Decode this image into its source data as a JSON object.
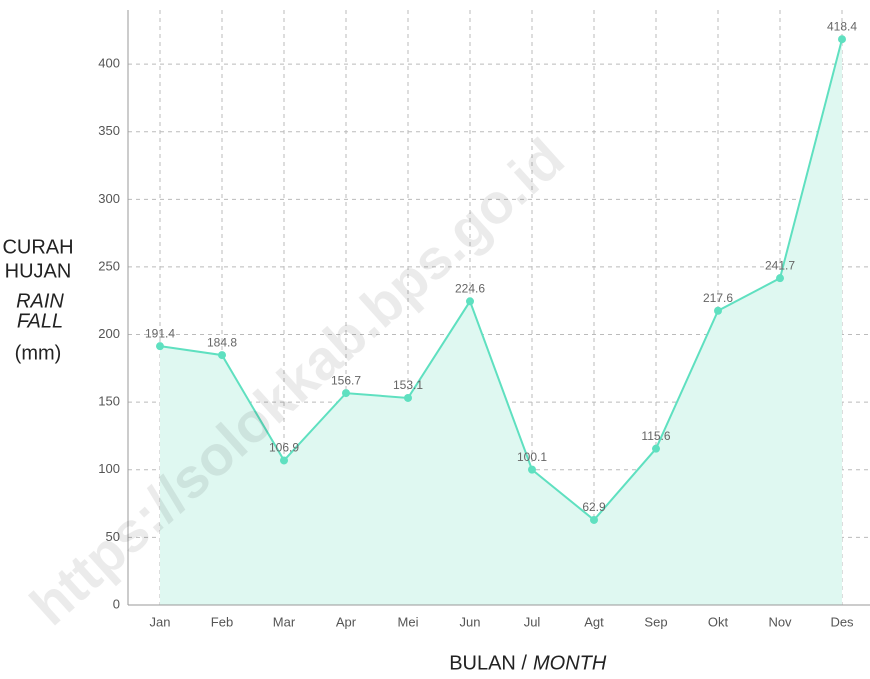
{
  "chart_data": {
    "type": "area",
    "categories": [
      "Jan",
      "Feb",
      "Mar",
      "Apr",
      "Mei",
      "Jun",
      "Jul",
      "Agt",
      "Sep",
      "Okt",
      "Nov",
      "Des"
    ],
    "values": [
      191.4,
      184.8,
      106.9,
      156.7,
      153.1,
      224.6,
      100.1,
      62.9,
      115.6,
      217.6,
      241.7,
      418.4
    ],
    "color": "#5fe0c0",
    "fill_color": "#dff8f1",
    "ylim": [
      0,
      440
    ],
    "yticks": [
      0,
      50,
      100,
      150,
      200,
      250,
      300,
      350,
      400
    ],
    "grid": true,
    "ylabel": {
      "id_lines": [
        "CURAH",
        "HUJAN"
      ],
      "en_lines": [
        "RAIN",
        "FALL"
      ],
      "unit": "(mm)"
    },
    "xlabel": {
      "id": "BULAN /",
      "en": "MONTH"
    },
    "watermark": "https://solokkab.bps.go.id"
  }
}
